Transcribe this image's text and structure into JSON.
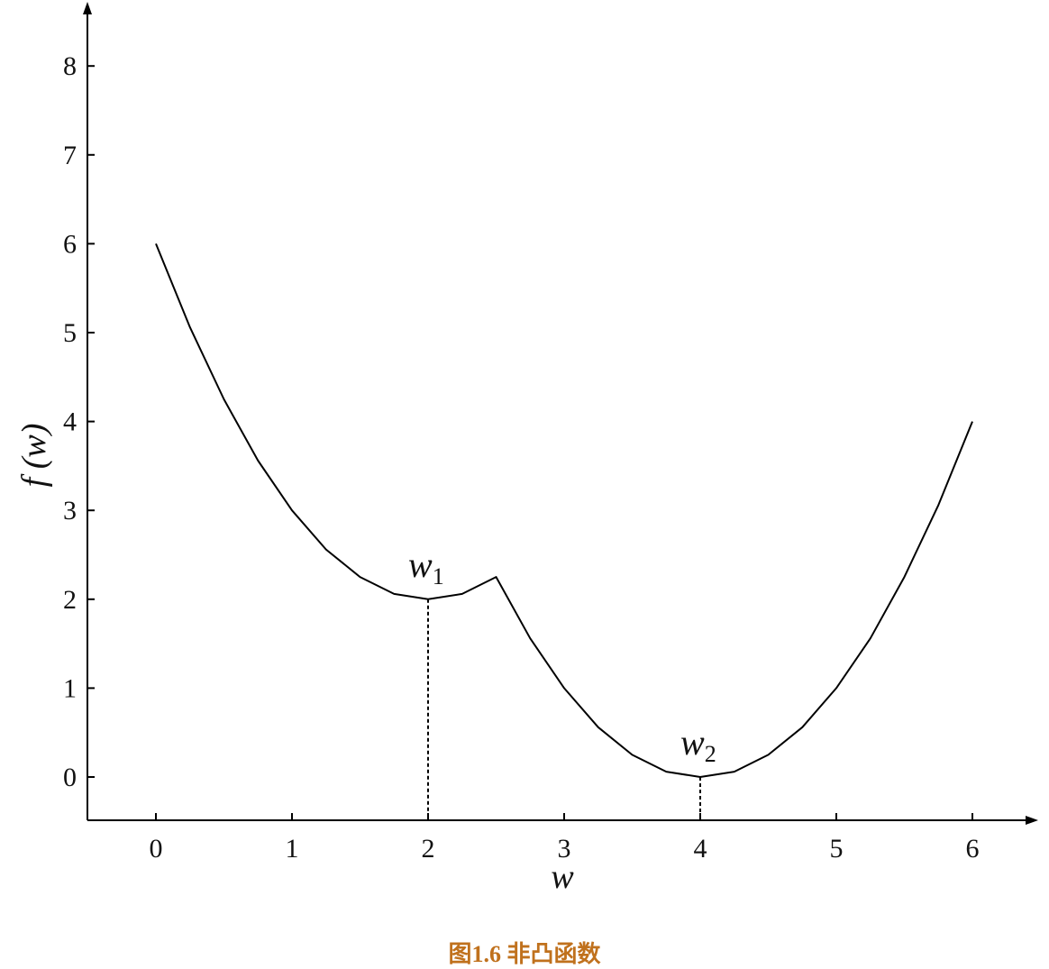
{
  "chart_data": {
    "type": "line",
    "title": "",
    "xlabel": "w",
    "ylabel": "f (w)",
    "xlim": [
      -0.5,
      6.45
    ],
    "ylim": [
      -0.5,
      8.7
    ],
    "x_ticks": [
      0,
      1,
      2,
      3,
      4,
      5,
      6
    ],
    "y_ticks": [
      0,
      1,
      2,
      3,
      4,
      5,
      6,
      7,
      8
    ],
    "series": [
      {
        "x": [
          0,
          0.25,
          0.5,
          0.75,
          1,
          1.25,
          1.5,
          1.75,
          2,
          2.25,
          2.5,
          2.75,
          3,
          3.25,
          3.5,
          3.75,
          4,
          4.25,
          4.5,
          4.75,
          5,
          5.25,
          5.5,
          5.75,
          6
        ],
        "y": [
          6.0,
          5.06,
          4.25,
          3.56,
          3.0,
          2.56,
          2.25,
          2.06,
          2.0,
          2.06,
          2.25,
          1.56,
          1.0,
          0.56,
          0.25,
          0.06,
          0.0,
          0.06,
          0.25,
          0.56,
          1.0,
          1.56,
          2.25,
          3.06,
          4.0
        ]
      }
    ],
    "annotations": [
      {
        "label": "w",
        "subscript": "1",
        "x": 2,
        "y": 2
      },
      {
        "label": "w",
        "subscript": "2",
        "x": 4,
        "y": 0
      }
    ]
  },
  "caption": "图1.6 非凸函数"
}
